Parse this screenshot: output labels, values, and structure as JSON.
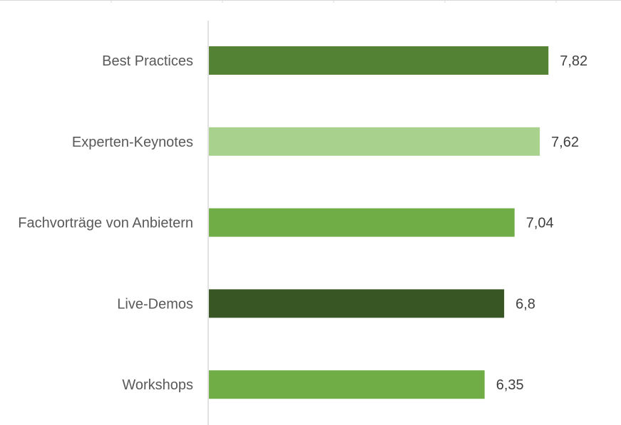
{
  "chart_data": {
    "type": "bar",
    "orientation": "horizontal",
    "categories": [
      "Best Practices",
      "Experten-Keynotes",
      "Fachvorträge von Anbietern",
      "Live-Demos",
      "Workshops"
    ],
    "values": [
      7.82,
      7.62,
      7.04,
      6.8,
      6.35
    ],
    "value_labels": [
      "7,82",
      "7,62",
      "7,04",
      "6,8",
      "6,35"
    ],
    "bar_colors": [
      "#548235",
      "#a9d18e",
      "#70ad47",
      "#375623",
      "#70ad47"
    ],
    "xlim": [
      0,
      10
    ],
    "grid": false,
    "axis_color": "#d9d9d9"
  }
}
